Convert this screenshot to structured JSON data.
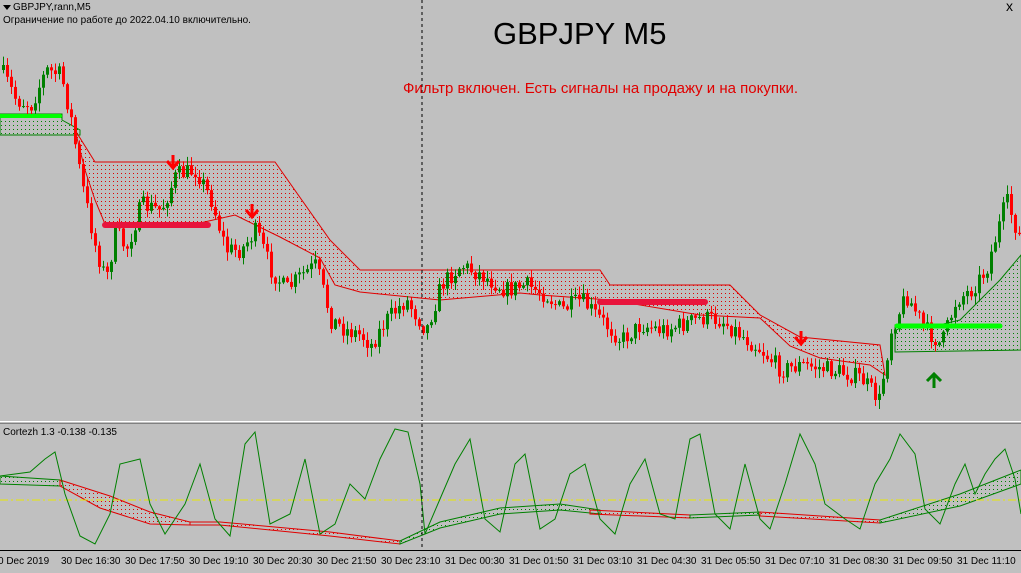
{
  "window": {
    "symbol_caption": "GBPJPY,rann,M5",
    "license_note": "Ограничение по работе до 2022.04.10 включительно.",
    "title": "GBPJPY M5",
    "filter_message": "Фильтр включен. Есть сигналы на продажу и на покупки.",
    "close_glyph": "x"
  },
  "indicator": {
    "caption": "Cortezh 1.3 -0.138 -0.135"
  },
  "time_axis": {
    "labels": [
      "0 Dec 2019",
      "30 Dec 16:30",
      "30 Dec 17:50",
      "30 Dec 19:10",
      "30 Dec 20:30",
      "30 Dec 21:50",
      "30 Dec 23:10",
      "31 Dec 00:30",
      "31 Dec 01:50",
      "31 Dec 03:10",
      "31 Dec 04:30",
      "31 Dec 05:50",
      "31 Dec 07:10",
      "31 Dec 08:30",
      "31 Dec 09:50",
      "31 Dec 11:10"
    ]
  },
  "colors": {
    "background": "#c0c0c0",
    "bull_candle": "#008000",
    "bear_candle": "#ff0000",
    "sell_zone": "#e00000",
    "buy_zone": "#008000",
    "sell_signal": "#e8143c",
    "buy_signal": "#00ff00",
    "sell_arrow": "#ff0000",
    "buy_arrow": "#008000",
    "oscillator": "#008000",
    "zero_line": "#e8e800"
  },
  "signals": [
    {
      "type": "sell",
      "icon": "down-arrow-icon"
    },
    {
      "type": "sell",
      "icon": "down-arrow-icon"
    },
    {
      "type": "sell",
      "icon": "down-arrow-icon"
    },
    {
      "type": "buy",
      "icon": "up-arrow-icon"
    }
  ]
}
